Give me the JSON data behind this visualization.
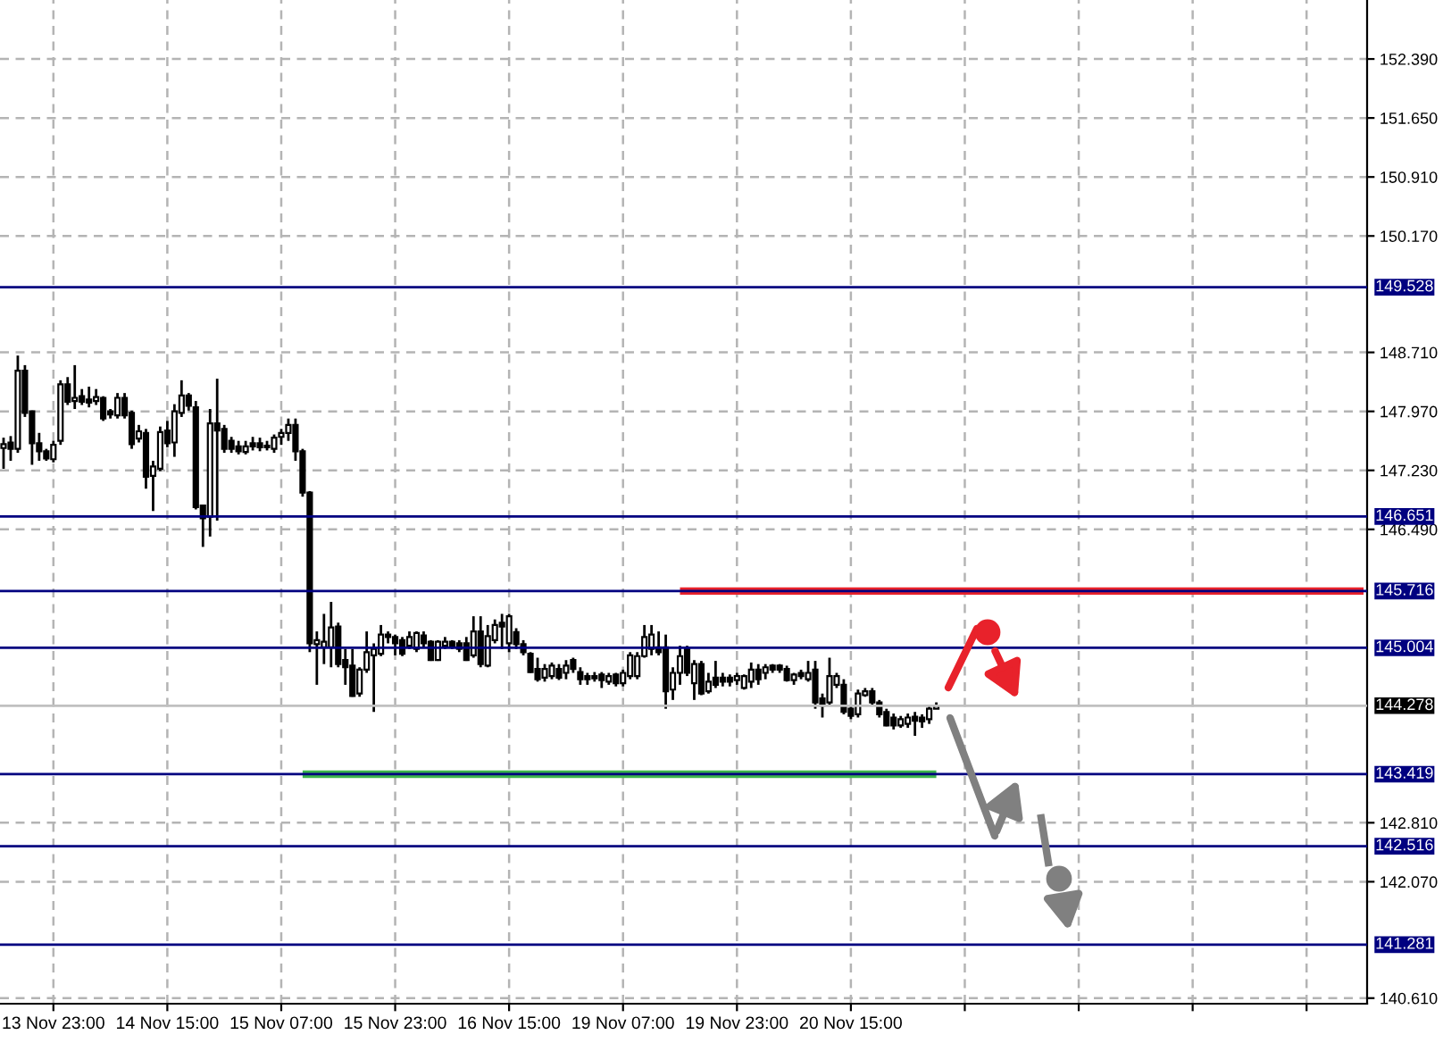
{
  "chart_data": {
    "type": "candlestick",
    "categories": [
      null,
      null,
      null,
      null,
      null,
      null,
      null,
      "13 Nov 23:00",
      null,
      null,
      null,
      null,
      null,
      null,
      null,
      null,
      null,
      null,
      null,
      null,
      null,
      null,
      null,
      "14 Nov 15:00",
      null,
      null,
      null,
      null,
      null,
      null,
      null,
      null,
      null,
      null,
      null,
      null,
      null,
      null,
      null,
      "15 Nov 07:00",
      null,
      null,
      null,
      null,
      null,
      null,
      null,
      null,
      null,
      null,
      null,
      null,
      null,
      null,
      null,
      "15 Nov 23:00",
      null,
      null,
      null,
      null,
      null,
      null,
      null,
      null,
      null,
      null,
      null,
      null,
      null,
      null,
      null,
      "16 Nov 15:00",
      null,
      null,
      null,
      null,
      null,
      null,
      null,
      null,
      null,
      null,
      null,
      null,
      null,
      null,
      null,
      "19 Nov 07:00",
      null,
      null,
      null,
      null,
      null,
      null,
      null,
      null,
      null,
      null,
      null,
      null,
      null,
      null,
      null,
      "19 Nov 23:00",
      null,
      null,
      null,
      null,
      null,
      null,
      null,
      null,
      null,
      null,
      null,
      null,
      null,
      null,
      null,
      "20 Nov 15:00",
      null,
      null,
      null,
      null,
      null,
      null,
      null,
      null,
      null,
      null,
      null,
      null,
      null,
      null,
      null,
      null,
      null,
      null,
      null,
      null,
      null,
      null,
      null,
      null,
      null,
      null,
      null,
      null,
      null,
      null,
      null,
      null,
      null,
      null,
      null,
      null,
      null,
      null,
      null,
      null,
      null,
      null,
      null,
      null,
      null,
      null,
      null,
      null,
      null,
      null,
      null,
      null,
      null,
      null,
      null,
      null,
      null,
      null,
      null,
      null,
      null,
      null,
      null,
      null,
      null,
      null,
      null,
      null,
      null,
      null,
      null,
      null
    ],
    "ohlc": [
      [
        147.51,
        147.64,
        147.25,
        147.56
      ],
      [
        147.58,
        147.66,
        147.35,
        147.5
      ],
      [
        147.5,
        148.67,
        147.45,
        148.48
      ],
      [
        148.48,
        148.55,
        147.9,
        147.95
      ],
      [
        147.97,
        147.98,
        147.3,
        147.57
      ],
      [
        147.57,
        147.7,
        147.35,
        147.47
      ],
      [
        147.47,
        147.5,
        147.35,
        147.38
      ],
      [
        147.37,
        147.6,
        147.33,
        147.55
      ],
      [
        147.6,
        148.36,
        147.55,
        148.31
      ],
      [
        148.31,
        148.4,
        148.05,
        148.09
      ],
      [
        148.1,
        148.55,
        148.0,
        148.14
      ],
      [
        148.16,
        148.25,
        148.05,
        148.09
      ],
      [
        148.12,
        148.28,
        148.02,
        148.08
      ],
      [
        148.1,
        148.25,
        148.05,
        148.15
      ],
      [
        148.14,
        148.16,
        147.85,
        147.88
      ],
      [
        147.97,
        148.0,
        147.88,
        147.93
      ],
      [
        147.92,
        148.2,
        147.88,
        148.14
      ],
      [
        148.14,
        148.2,
        147.88,
        147.92
      ],
      [
        147.95,
        147.98,
        147.5,
        147.56
      ],
      [
        147.63,
        147.8,
        147.58,
        147.72
      ],
      [
        147.7,
        147.75,
        147.0,
        147.15
      ],
      [
        147.16,
        147.35,
        146.72,
        147.28
      ],
      [
        147.25,
        147.78,
        147.22,
        147.71
      ],
      [
        147.73,
        147.85,
        147.52,
        147.57
      ],
      [
        147.58,
        148.06,
        147.4,
        147.97
      ],
      [
        147.95,
        148.36,
        147.9,
        148.17
      ],
      [
        148.17,
        148.2,
        147.98,
        148.04
      ],
      [
        148.02,
        148.1,
        146.74,
        146.77
      ],
      [
        146.79,
        146.8,
        146.27,
        146.63
      ],
      [
        146.65,
        148.0,
        146.4,
        147.82
      ],
      [
        147.82,
        148.38,
        146.6,
        147.73
      ],
      [
        147.75,
        147.8,
        147.45,
        147.5
      ],
      [
        147.6,
        147.65,
        147.45,
        147.5
      ],
      [
        147.53,
        147.6,
        147.43,
        147.47
      ],
      [
        147.46,
        147.6,
        147.43,
        147.53
      ],
      [
        147.57,
        147.65,
        147.48,
        147.53
      ],
      [
        147.57,
        147.64,
        147.47,
        147.52
      ],
      [
        147.54,
        147.6,
        147.48,
        147.52
      ],
      [
        147.5,
        147.68,
        147.45,
        147.64
      ],
      [
        147.65,
        147.75,
        147.55,
        147.7
      ],
      [
        147.7,
        147.88,
        147.6,
        147.8
      ],
      [
        147.8,
        147.88,
        147.35,
        147.47
      ],
      [
        147.47,
        147.5,
        146.9,
        146.95
      ],
      [
        146.95,
        146.97,
        144.95,
        145.06
      ],
      [
        145.05,
        145.21,
        144.54,
        145.1
      ],
      [
        145.01,
        145.43,
        144.8,
        145.08
      ],
      [
        145.01,
        145.58,
        144.76,
        145.26
      ],
      [
        145.27,
        145.32,
        144.76,
        144.8
      ],
      [
        144.85,
        144.99,
        144.54,
        144.76
      ],
      [
        144.78,
        144.99,
        144.39,
        144.4
      ],
      [
        144.43,
        144.76,
        144.39,
        144.73
      ],
      [
        144.73,
        145.21,
        144.69,
        144.95
      ],
      [
        144.91,
        145.06,
        144.2,
        144.99
      ],
      [
        144.93,
        145.29,
        144.9,
        145.17
      ],
      [
        145.17,
        145.21,
        145.06,
        145.14
      ],
      [
        145.14,
        145.17,
        144.91,
        145.06
      ],
      [
        145.1,
        145.14,
        144.9,
        144.93
      ],
      [
        145.03,
        145.21,
        144.99,
        145.14
      ],
      [
        144.99,
        145.21,
        144.95,
        145.19
      ],
      [
        145.16,
        145.21,
        145.02,
        145.06
      ],
      [
        145.08,
        145.1,
        144.84,
        144.85
      ],
      [
        144.85,
        145.1,
        144.84,
        145.08
      ],
      [
        145.03,
        145.14,
        144.99,
        145.08
      ],
      [
        145.08,
        145.1,
        144.99,
        145.03
      ],
      [
        145.06,
        145.1,
        144.95,
        144.99
      ],
      [
        145.06,
        145.14,
        144.84,
        144.85
      ],
      [
        144.91,
        145.4,
        144.88,
        145.21
      ],
      [
        145.21,
        145.4,
        144.76,
        144.8
      ],
      [
        144.78,
        145.29,
        144.76,
        145.15
      ],
      [
        145.1,
        145.36,
        145.06,
        145.29
      ],
      [
        145.32,
        145.43,
        144.99,
        145.27
      ],
      [
        145.06,
        145.43,
        144.95,
        145.4
      ],
      [
        145.2,
        145.25,
        144.99,
        145.05
      ],
      [
        145.05,
        145.1,
        144.91,
        144.95
      ],
      [
        144.93,
        144.95,
        144.69,
        144.7
      ],
      [
        144.74,
        144.88,
        144.58,
        144.61
      ],
      [
        144.63,
        144.8,
        144.58,
        144.74
      ],
      [
        144.65,
        144.82,
        144.61,
        144.78
      ],
      [
        144.74,
        144.8,
        144.6,
        144.63
      ],
      [
        144.69,
        144.85,
        144.61,
        144.78
      ],
      [
        144.85,
        144.88,
        144.69,
        144.74
      ],
      [
        144.7,
        144.76,
        144.54,
        144.61
      ],
      [
        144.65,
        144.69,
        144.54,
        144.61
      ],
      [
        144.65,
        144.7,
        144.58,
        144.62
      ],
      [
        144.67,
        144.7,
        144.5,
        144.6
      ],
      [
        144.58,
        144.69,
        144.54,
        144.65
      ],
      [
        144.67,
        144.69,
        144.52,
        144.56
      ],
      [
        144.56,
        144.73,
        144.52,
        144.69
      ],
      [
        144.65,
        144.95,
        144.61,
        144.91
      ],
      [
        144.65,
        144.95,
        144.61,
        144.9
      ],
      [
        144.9,
        145.29,
        144.88,
        145.14
      ],
      [
        144.99,
        145.29,
        144.91,
        145.17
      ],
      [
        145.01,
        145.21,
        144.91,
        144.95
      ],
      [
        145.01,
        145.17,
        144.24,
        144.46
      ],
      [
        144.48,
        144.76,
        144.35,
        144.69
      ],
      [
        144.69,
        145.03,
        144.54,
        144.9
      ],
      [
        144.99,
        145.03,
        144.65,
        144.69
      ],
      [
        144.56,
        144.85,
        144.35,
        144.8
      ],
      [
        144.8,
        144.84,
        144.41,
        144.43
      ],
      [
        144.46,
        144.69,
        144.43,
        144.58
      ],
      [
        144.63,
        144.84,
        144.5,
        144.54
      ],
      [
        144.63,
        144.69,
        144.52,
        144.58
      ],
      [
        144.63,
        144.67,
        144.52,
        144.58
      ],
      [
        144.6,
        144.69,
        144.54,
        144.65
      ],
      [
        144.5,
        144.67,
        144.48,
        144.65
      ],
      [
        144.58,
        144.82,
        144.5,
        144.73
      ],
      [
        144.73,
        144.8,
        144.54,
        144.61
      ],
      [
        144.69,
        144.8,
        144.61,
        144.76
      ],
      [
        144.78,
        144.8,
        144.69,
        144.73
      ],
      [
        144.78,
        144.8,
        144.69,
        144.73
      ],
      [
        144.74,
        144.78,
        144.58,
        144.6
      ],
      [
        144.6,
        144.69,
        144.54,
        144.67
      ],
      [
        144.69,
        144.73,
        144.61,
        144.65
      ],
      [
        144.61,
        144.84,
        144.58,
        144.69
      ],
      [
        144.73,
        144.84,
        144.24,
        144.32
      ],
      [
        144.37,
        144.43,
        144.13,
        144.28
      ],
      [
        144.32,
        144.88,
        144.28,
        144.65
      ],
      [
        144.54,
        144.69,
        144.5,
        144.65
      ],
      [
        144.54,
        144.61,
        144.17,
        144.2
      ],
      [
        144.24,
        144.28,
        144.11,
        144.15
      ],
      [
        144.17,
        144.48,
        144.13,
        144.43
      ],
      [
        144.41,
        144.5,
        144.39,
        144.46
      ],
      [
        144.46,
        144.5,
        144.28,
        144.32
      ],
      [
        144.32,
        144.35,
        144.13,
        144.17
      ],
      [
        144.2,
        144.24,
        144.02,
        144.03
      ],
      [
        144.13,
        144.18,
        143.98,
        144.03
      ],
      [
        144.03,
        144.15,
        144.0,
        144.11
      ],
      [
        144.05,
        144.18,
        144.0,
        144.13
      ],
      [
        144.14,
        144.2,
        143.9,
        144.09
      ],
      [
        144.13,
        144.17,
        144.0,
        144.08
      ],
      [
        144.11,
        144.28,
        144.05,
        144.24
      ],
      [
        144.24,
        144.32,
        144.24,
        144.28
      ],
      null,
      null,
      null,
      null,
      null,
      null,
      null,
      null,
      null,
      null,
      null,
      null,
      null,
      null,
      null,
      null,
      null,
      null,
      null,
      null,
      null,
      null,
      null,
      null,
      null,
      null,
      null,
      null,
      null,
      null,
      null,
      null,
      null,
      null,
      null,
      null,
      null,
      null,
      null,
      null,
      null,
      null,
      null,
      null,
      null,
      null,
      null,
      null,
      null,
      null,
      null,
      null,
      null,
      null,
      null,
      null,
      null,
      null,
      null,
      null
    ],
    "series": [
      {
        "type": "line",
        "color": "#e8222b",
        "values": [
          null,
          null,
          null,
          null,
          null,
          null,
          null,
          null,
          null,
          null,
          null,
          null,
          null,
          null,
          null,
          null,
          null,
          null,
          null,
          null,
          null,
          null,
          null,
          null,
          null,
          null,
          null,
          null,
          null,
          null,
          null,
          null,
          null,
          null,
          null,
          null,
          null,
          null,
          null,
          null,
          null,
          null,
          null,
          null,
          null,
          null,
          null,
          null,
          null,
          null,
          null,
          null,
          null,
          null,
          null,
          null,
          null,
          null,
          null,
          null,
          null,
          null,
          null,
          null,
          null,
          null,
          null,
          null,
          null,
          null,
          null,
          null,
          null,
          null,
          null,
          null,
          null,
          null,
          null,
          null,
          null,
          null,
          null,
          null,
          null,
          null,
          null,
          null,
          null,
          null,
          null,
          null,
          null,
          null,
          null,
          145.716,
          145.716,
          145.716,
          145.716,
          145.716,
          145.716,
          145.716,
          145.716,
          145.716,
          145.716,
          145.716,
          145.716,
          145.716,
          145.716,
          145.716,
          145.716,
          145.716,
          145.716,
          145.716,
          145.716,
          145.716,
          145.716,
          145.716,
          145.716,
          145.716,
          145.716,
          145.716,
          145.716,
          145.716,
          145.716,
          145.716,
          145.716,
          145.716,
          145.716,
          145.716,
          145.716,
          145.716,
          145.716,
          145.716,
          145.716,
          145.716,
          145.716,
          145.716,
          145.716,
          145.716,
          145.716,
          145.716,
          145.716,
          145.716,
          145.716,
          145.716,
          145.716,
          145.716,
          145.716,
          145.716,
          145.716,
          145.716,
          145.716,
          145.716,
          145.716,
          145.716,
          145.716,
          145.716,
          145.716,
          145.716,
          145.716,
          145.716,
          145.716,
          145.716,
          145.716,
          145.716,
          145.716,
          145.716,
          145.716,
          145.716,
          145.716,
          145.716,
          145.716,
          145.716,
          145.716,
          145.716,
          145.716,
          145.716,
          145.716,
          145.716,
          145.716,
          145.716,
          145.716,
          145.716,
          145.716,
          145.716,
          145.716,
          145.716,
          145.716,
          145.716,
          145.716,
          145.716
        ]
      },
      {
        "type": "line",
        "color": "#3cb44b",
        "values": [
          null,
          null,
          null,
          null,
          null,
          null,
          null,
          null,
          null,
          null,
          null,
          null,
          null,
          null,
          null,
          null,
          null,
          null,
          null,
          null,
          null,
          null,
          null,
          null,
          null,
          null,
          null,
          null,
          null,
          null,
          null,
          null,
          null,
          null,
          null,
          null,
          null,
          null,
          null,
          null,
          null,
          null,
          143.419,
          143.419,
          143.419,
          143.419,
          143.419,
          143.419,
          143.419,
          143.419,
          143.419,
          143.419,
          143.419,
          143.419,
          143.419,
          143.419,
          143.419,
          143.419,
          143.419,
          143.419,
          143.419,
          143.419,
          143.419,
          143.419,
          143.419,
          143.419,
          143.419,
          143.419,
          143.419,
          143.419,
          143.419,
          143.419,
          143.419,
          143.419,
          143.419,
          143.419,
          143.419,
          143.419,
          143.419,
          143.419,
          143.419,
          143.419,
          143.419,
          143.419,
          143.419,
          143.419,
          143.419,
          143.419,
          143.419,
          143.419,
          143.419,
          143.419,
          143.419,
          143.419,
          143.419,
          143.419,
          143.419,
          143.419,
          143.419,
          143.419,
          143.419,
          143.419,
          143.419,
          143.419,
          143.419,
          143.419,
          143.419,
          143.419,
          143.419,
          143.419,
          143.419,
          143.419,
          143.419,
          143.419,
          143.419,
          143.419,
          143.419,
          143.419,
          143.419,
          143.419,
          143.419,
          143.419,
          143.419,
          143.419,
          143.419,
          143.419,
          143.419,
          143.419,
          143.419,
          143.419,
          143.419,
          143.419,
          null,
          null,
          null,
          null,
          null,
          null,
          null,
          null,
          null,
          null,
          null,
          null,
          null,
          null,
          null,
          null,
          null,
          null,
          null,
          null,
          null,
          null,
          null,
          null,
          null,
          null,
          null,
          null,
          null,
          null,
          null,
          null,
          null,
          null,
          null,
          null,
          null,
          null,
          null,
          null,
          null,
          null,
          null,
          null,
          null,
          null,
          null,
          null,
          null,
          null,
          null,
          null,
          null,
          null,
          null,
          null,
          null,
          null,
          null,
          null
        ]
      }
    ],
    "ylim": [
      140.54,
      153.13
    ],
    "yticks": [
      {
        "value": 152.39,
        "label": "152.390"
      },
      {
        "value": 151.65,
        "label": "151.650"
      },
      {
        "value": 150.91,
        "label": "150.910"
      },
      {
        "value": 150.17,
        "label": "150.170"
      },
      {
        "value": 148.71,
        "label": "148.710"
      },
      {
        "value": 147.97,
        "label": "147.970"
      },
      {
        "value": 147.23,
        "label": "147.230"
      },
      {
        "value": 146.49,
        "label": "146.490"
      },
      {
        "value": 142.81,
        "label": "142.810"
      },
      {
        "value": 142.07,
        "label": "142.070"
      },
      {
        "value": 140.61,
        "label": "140.610"
      }
    ],
    "ref_lines": [
      {
        "axis": "y",
        "value": 149.528,
        "label": "149.528",
        "color": "#000080"
      },
      {
        "axis": "y",
        "value": 146.651,
        "label": "146.651",
        "color": "#000080"
      },
      {
        "axis": "y",
        "value": 145.716,
        "label": "145.716",
        "color": "#000080"
      },
      {
        "axis": "y",
        "value": 145.004,
        "label": "145.004",
        "color": "#000080"
      },
      {
        "axis": "y",
        "value": 144.278,
        "label": "144.278",
        "color": "#c0c0c0"
      },
      {
        "axis": "y",
        "value": 143.419,
        "label": "143.419",
        "color": "#000080"
      },
      {
        "axis": "y",
        "value": 142.516,
        "label": "142.516",
        "color": "#000080"
      },
      {
        "axis": "y",
        "value": 141.281,
        "label": "141.281",
        "color": "#000080"
      }
    ],
    "grid": true
  }
}
